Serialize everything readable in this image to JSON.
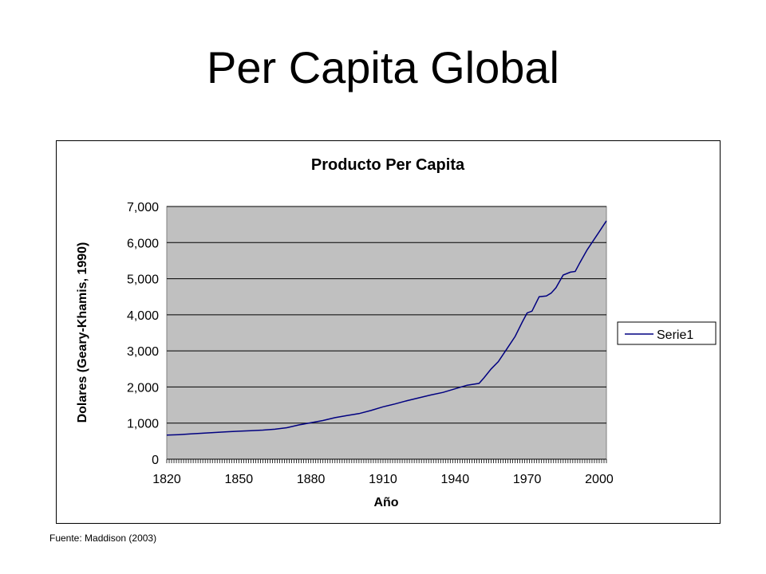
{
  "slide": {
    "title": "Per Capita Global",
    "source": "Fuente: Maddison (2003)"
  },
  "colors": {
    "plot_background": "#c0c0c0",
    "series_line": "#000080",
    "gridline": "#000000"
  },
  "chart_data": {
    "type": "line",
    "title": "Producto Per Capita",
    "xlabel": "Año",
    "ylabel": "Dolares (Geary-Khamis, 1990)",
    "xlim": [
      1820,
      2003
    ],
    "ylim": [
      0,
      7000
    ],
    "x_ticks": [
      1820,
      1850,
      1880,
      1910,
      1940,
      1970,
      2000
    ],
    "x_tick_labels": [
      "1820",
      "1850",
      "1880",
      "1910",
      "1940",
      "1970",
      "2000"
    ],
    "y_ticks": [
      0,
      1000,
      2000,
      3000,
      4000,
      5000,
      6000,
      7000
    ],
    "y_tick_labels": [
      "0",
      "1,000",
      "2,000",
      "3,000",
      "4,000",
      "5,000",
      "6,000",
      "7,000"
    ],
    "grid": true,
    "legend_position": "right",
    "series": [
      {
        "name": "Serie1",
        "x": [
          1820,
          1825,
          1830,
          1835,
          1840,
          1845,
          1850,
          1855,
          1860,
          1865,
          1870,
          1875,
          1880,
          1885,
          1890,
          1895,
          1900,
          1905,
          1910,
          1915,
          1920,
          1925,
          1930,
          1935,
          1940,
          1945,
          1950,
          1952,
          1955,
          1958,
          1960,
          1962,
          1965,
          1968,
          1970,
          1972,
          1975,
          1978,
          1980,
          1982,
          1985,
          1988,
          1990,
          1992,
          1995,
          1998,
          2000,
          2002,
          2003
        ],
        "values": [
          667,
          680,
          700,
          720,
          740,
          760,
          775,
          790,
          805,
          830,
          873,
          950,
          1010,
          1070,
          1150,
          1210,
          1262,
          1350,
          1450,
          1530,
          1620,
          1700,
          1780,
          1850,
          1950,
          2050,
          2100,
          2250,
          2500,
          2700,
          2900,
          3100,
          3400,
          3800,
          4050,
          4100,
          4500,
          4520,
          4600,
          4750,
          5100,
          5180,
          5200,
          5450,
          5800,
          6100,
          6300,
          6500,
          6600
        ]
      }
    ]
  }
}
